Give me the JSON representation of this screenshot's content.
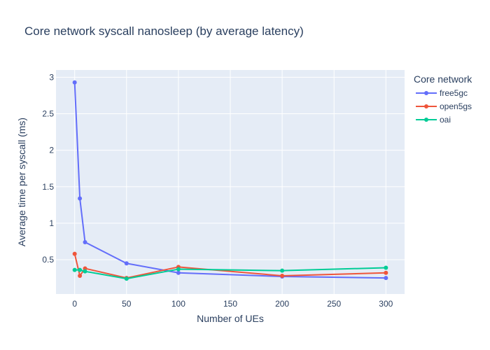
{
  "chart_data": {
    "type": "line",
    "title": "Core network syscall nanosleep (by average latency)",
    "xlabel": "Number of UEs",
    "ylabel": "Average time per syscall (ms)",
    "xlim": [
      -18,
      318
    ],
    "ylim": [
      0.03,
      3.1
    ],
    "xticks": [
      0,
      50,
      100,
      150,
      200,
      250,
      300
    ],
    "yticks": [
      0.5,
      1,
      1.5,
      2,
      2.5,
      3
    ],
    "xtick_labels": [
      "0",
      "50",
      "100",
      "150",
      "200",
      "250",
      "300"
    ],
    "ytick_labels": [
      "0.5",
      "1",
      "1.5",
      "2",
      "2.5",
      "3"
    ],
    "grid": true,
    "plot_background": "#e5ecf6",
    "legend": {
      "title": "Core network",
      "placement": "top-right-outside"
    },
    "series": [
      {
        "name": "free5gc",
        "color": "#636efa",
        "x": [
          0,
          5,
          10,
          50,
          100,
          200,
          300
        ],
        "y": [
          2.93,
          1.34,
          0.74,
          0.45,
          0.32,
          0.27,
          0.25
        ]
      },
      {
        "name": "open5gs",
        "color": "#ef553b",
        "x": [
          0,
          5,
          10,
          50,
          100,
          200,
          300
        ],
        "y": [
          0.58,
          0.28,
          0.38,
          0.25,
          0.4,
          0.28,
          0.32
        ]
      },
      {
        "name": "oai",
        "color": "#00cc96",
        "x": [
          0,
          5,
          10,
          50,
          100,
          200,
          300
        ],
        "y": [
          0.36,
          0.36,
          0.34,
          0.24,
          0.37,
          0.35,
          0.39
        ]
      }
    ]
  }
}
